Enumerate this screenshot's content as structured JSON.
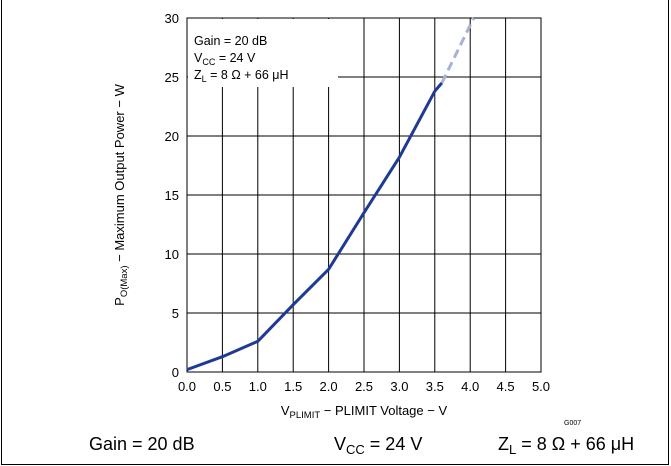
{
  "chart_data": {
    "type": "line",
    "title": "",
    "xlabel": {
      "main": "V",
      "sub": "PLIMIT",
      "rest": " − PLIMIT Voltage − V"
    },
    "ylabel": {
      "main": "P",
      "sub": "O(Max)",
      "rest": " − Maximum Output Power − W"
    },
    "xlim": [
      0,
      5
    ],
    "ylim": [
      0,
      30
    ],
    "x_ticks": [
      "0.0",
      "0.5",
      "1.0",
      "1.5",
      "2.0",
      "2.5",
      "3.0",
      "3.5",
      "4.0",
      "4.5",
      "5.0"
    ],
    "y_ticks": [
      "0",
      "5",
      "10",
      "15",
      "20",
      "25",
      "30"
    ],
    "grid": true,
    "series": [
      {
        "color": "#1f3a93",
        "style": "solid",
        "x": [
          0.0,
          0.5,
          1.0,
          1.5,
          2.0,
          2.5,
          3.0,
          3.5,
          3.6
        ],
        "y": [
          0.2,
          1.3,
          2.6,
          5.7,
          8.7,
          13.5,
          18.2,
          23.8,
          24.5
        ]
      },
      {
        "color": "#a9b1d6",
        "style": "dashed",
        "x": [
          3.6,
          4.05
        ],
        "y": [
          24.5,
          30.0
        ]
      }
    ],
    "annotation": {
      "line1": "Gain = 20 dB",
      "line2": {
        "main": "V",
        "sub": "CC",
        "rest": " = 24 V"
      },
      "line3": {
        "main": "Z",
        "sub": "L",
        "rest": " = 8 Ω + 66 μH"
      }
    },
    "figure_id": "G007"
  },
  "footer": {
    "gain": "Gain = 20 dB",
    "vcc": {
      "main": "V",
      "sub": "CC",
      "rest": " = 24 V"
    },
    "zl": {
      "main": "Z",
      "sub": "L",
      "rest": " = 8 Ω + 66 μH"
    }
  }
}
